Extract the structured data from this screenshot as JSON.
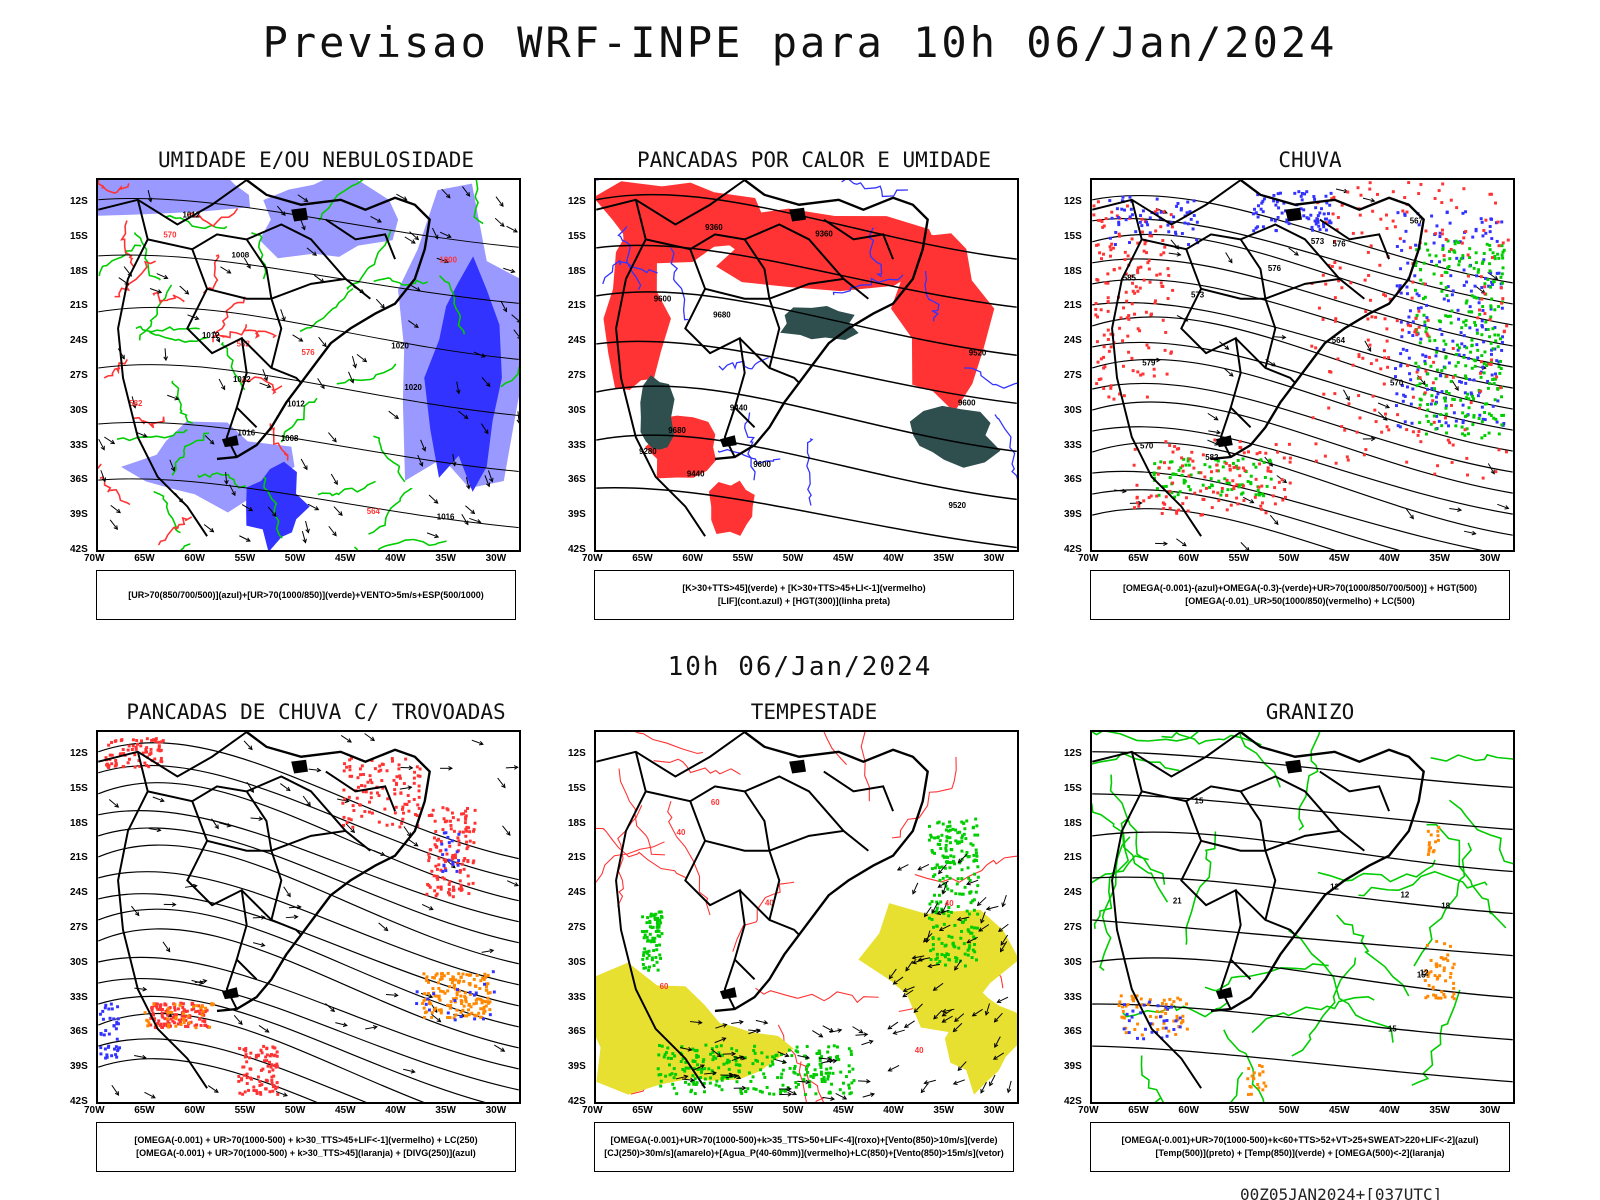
{
  "title": "Previsao WRF-INPE  para 10h 06/Jan/2024",
  "mid_time": "10h 06/Jan/2024",
  "footer": "00Z05JAN2024+[037UTC]",
  "axes": {
    "lat_labels": [
      "12S",
      "15S",
      "18S",
      "21S",
      "24S",
      "27S",
      "30S",
      "33S",
      "36S",
      "39S",
      "42S"
    ],
    "lon_labels": [
      "70W",
      "65W",
      "60W",
      "55W",
      "50W",
      "45W",
      "40W",
      "35W",
      "30W"
    ]
  },
  "colors": {
    "blue": "#3333ff",
    "green": "#00cc00",
    "red": "#ff3333",
    "orange": "#ff8800",
    "yellow": "#e8e030",
    "dark_teal": "#2f4f4f",
    "light_blue": "#9999ff"
  },
  "panels": [
    {
      "title": "UMIDADE E/OU NEBULOSIDADE",
      "legend": [
        "[UR>70(850/700/500)](azul)+[UR>70(1000/850)](verde)+VENTO>5m/s+ESP(500/1000)"
      ],
      "contour_labels": [
        "1012",
        "1012",
        "1012",
        "1020",
        "1016",
        "1008",
        "1008",
        "1012",
        "1016",
        "1020",
        "576",
        "582",
        "570",
        "582",
        "564",
        "1000"
      ]
    },
    {
      "title": "PANCADAS POR CALOR E UMIDADE",
      "legend": [
        "[K>30+TTS>45](verde) + [K>30+TTS>45+LI<-1](vermelho)",
        "[LIF](cont.azul) + [HGT(300)](linha preta)"
      ],
      "contour_labels": [
        "9680",
        "9680",
        "9600",
        "9600",
        "9600",
        "9520",
        "9520",
        "9440",
        "9440",
        "9360",
        "9360",
        "9280"
      ]
    },
    {
      "title": "CHUVA",
      "legend": [
        "[OMEGA(-0.001)-(azul)+OMEGA(-0.3)-(verde)+UR>70(1000/850/700/500)] + HGT(500)",
        "[OMEGA(-0.01)_UR>50(1000/850)(vermelho) + LC(500)"
      ],
      "contour_labels": [
        "585",
        "582",
        "579",
        "576",
        "573",
        "570",
        "567",
        "564",
        "576",
        "573",
        "570"
      ]
    },
    {
      "title": "PANCADAS DE CHUVA C/ TROVOADAS",
      "legend": [
        "[OMEGA(-0.001) + UR>70(1000-500) + k>30_TTS>45+LIF<-1](vermelho) + LC(250)",
        "[OMEGA(-0.001) + UR>70(1000-500) + k>30_TTS>45](laranja) + [DIVG(250)](azul)"
      ],
      "contour_labels": []
    },
    {
      "title": "TEMPESTADE",
      "legend": [
        "[OMEGA(-0.001)+UR>70(1000-500)+k>35_TTS>50+LIF<-4](roxo)+[Vento(850)>10m/s](verde)",
        "[CJ(250)>30m/s](amarelo)+[Agua_P(40-60mm)](vermelho)+LC(850)+[Vento(850)>15m/s](vetor)"
      ],
      "contour_labels": [
        "60",
        "40",
        "40",
        "40",
        "60",
        "40"
      ]
    },
    {
      "title": "GRANIZO",
      "legend": [
        "[OMEGA(-0.001)+UR>70(1000-500)+k<60+TTS>52+VT>25+SWEAT>220+LIF<-2](azul)",
        "[Temp(500)](preto) + [Temp(850)](verde) + [OMEGA(500)<-2](laranja)"
      ],
      "contour_labels": [
        "12",
        "15",
        "12",
        "15",
        "21",
        "18",
        "15",
        "12"
      ]
    }
  ]
}
